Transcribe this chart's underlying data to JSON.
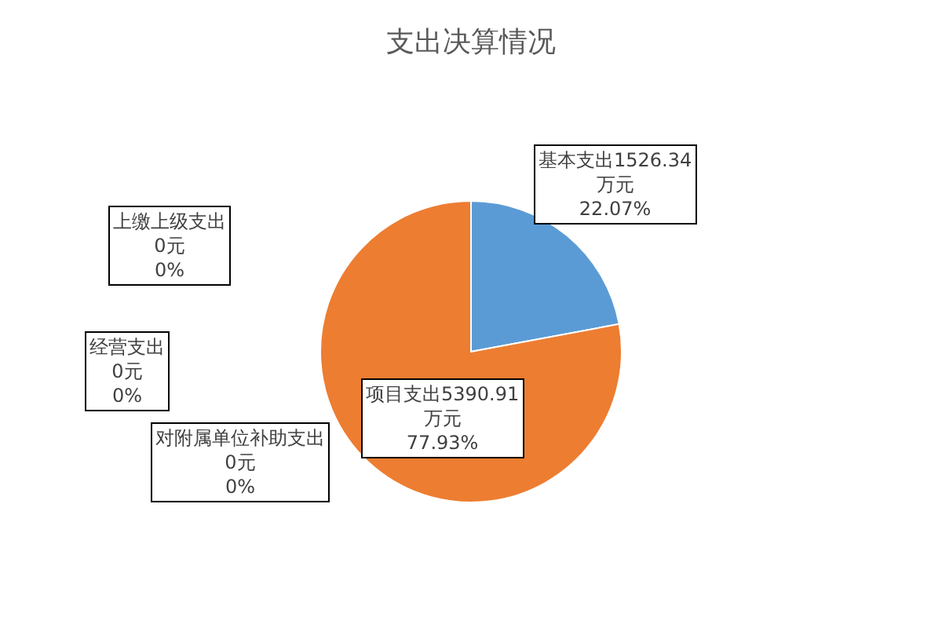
{
  "chart_data": {
    "type": "pie",
    "title": "支出决算情况",
    "categories": [
      "基本支出",
      "项目支出",
      "上缴上级支出",
      "经营支出",
      "对附属单位补助支出"
    ],
    "values": [
      1526.34,
      5390.91,
      0,
      0,
      0
    ],
    "value_labels": [
      "1526.34\n万元\n22.07%",
      "5390.91\n万元\n77.93%",
      "\n0元\n0%",
      "\n0元\n0%",
      "\n0元\n0%"
    ],
    "colors": [
      "#5b9bd5",
      "#ed7d31",
      "#a5a5a5",
      "#ffc000",
      "#4472c4"
    ],
    "legend": false
  }
}
